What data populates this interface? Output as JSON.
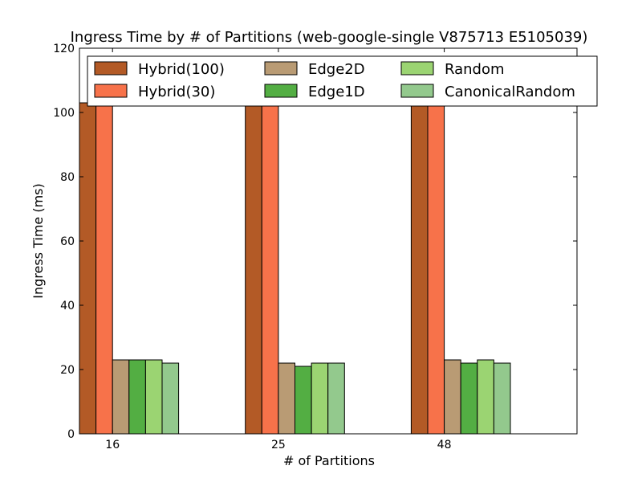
{
  "chart_data": {
    "type": "bar",
    "title": "Ingress Time by # of Partitions (web-google-single V875713 E5105039)",
    "xlabel": "# of Partitions",
    "ylabel": "Ingress Time (ms)",
    "categories": [
      "16",
      "25",
      "48"
    ],
    "ylim": [
      0,
      120
    ],
    "yticks": [
      "0",
      "20",
      "40",
      "60",
      "80",
      "100",
      "120"
    ],
    "grid": false,
    "legend_position": "top",
    "series": [
      {
        "name": "Hybrid(100)",
        "color": "#b35a26",
        "values": [
          103,
          103,
          103
        ]
      },
      {
        "name": "Hybrid(30)",
        "color": "#f7724a",
        "values": [
          103,
          103,
          103
        ]
      },
      {
        "name": "Edge2D",
        "color": "#b99b74",
        "values": [
          23,
          22,
          23
        ]
      },
      {
        "name": "Edge1D",
        "color": "#53ae43",
        "values": [
          23,
          21,
          22
        ]
      },
      {
        "name": "Random",
        "color": "#9bd472",
        "values": [
          23,
          22,
          23
        ]
      },
      {
        "name": "CanonicalRandom",
        "color": "#93c98d",
        "values": [
          22,
          22,
          22
        ]
      }
    ]
  }
}
